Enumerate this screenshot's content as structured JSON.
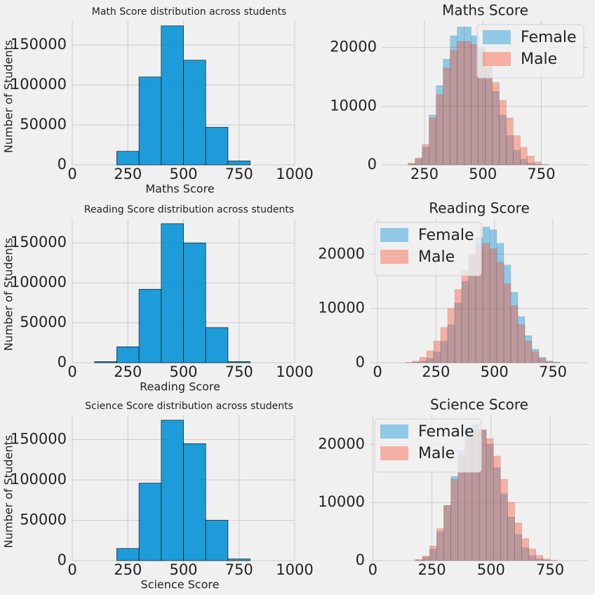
{
  "chart_data": [
    {
      "type": "histogram",
      "title": "Math Score distribution across students",
      "xlabel": "Maths Score",
      "ylabel": "Number of Students",
      "bins": [
        200,
        300,
        400,
        500,
        600,
        700,
        800
      ],
      "values": [
        17000,
        110000,
        174000,
        131000,
        47000,
        5000
      ],
      "color": "#008fd5",
      "xlim": [
        0,
        1000
      ],
      "xticks": [
        0,
        250,
        500,
        750,
        1000
      ],
      "ylim": [
        0,
        180000
      ],
      "yticks": [
        0,
        50000,
        100000,
        150000
      ],
      "grid": true
    },
    {
      "type": "overlaid_histogram",
      "title": "Maths Score",
      "bins": [
        180,
        210,
        240,
        270,
        300,
        330,
        360,
        390,
        420,
        450,
        480,
        510,
        540,
        570,
        600,
        630,
        660,
        690,
        720,
        750,
        780
      ],
      "series": [
        {
          "name": "Female",
          "color": "#008fd5",
          "values": [
            200,
            1000,
            3000,
            8500,
            13500,
            18000,
            22000,
            23500,
            23500,
            22000,
            20000,
            16500,
            12500,
            8500,
            5000,
            2500,
            1000,
            300,
            100,
            0
          ]
        },
        {
          "name": "Male",
          "color": "#fc4f30",
          "values": [
            300,
            1200,
            3500,
            8000,
            12000,
            16500,
            19500,
            21000,
            21000,
            20500,
            19000,
            17000,
            14000,
            11000,
            8000,
            5000,
            3000,
            1500,
            500,
            100
          ]
        }
      ],
      "xlim": [
        70,
        950
      ],
      "xticks": [
        250,
        500,
        750
      ],
      "ylim": [
        0,
        24500
      ],
      "yticks": [
        0,
        10000,
        20000
      ],
      "grid": true,
      "legend": "upper right"
    },
    {
      "type": "histogram",
      "title": "Reading Score distribution across students",
      "xlabel": "Reading Score",
      "ylabel": "Number of Students",
      "bins": [
        100,
        200,
        300,
        400,
        500,
        600,
        700,
        800
      ],
      "values": [
        1500,
        20000,
        92000,
        174000,
        150000,
        44000,
        1500
      ],
      "color": "#008fd5",
      "xlim": [
        0,
        1000
      ],
      "xticks": [
        0,
        250,
        500,
        750,
        1000
      ],
      "ylim": [
        0,
        180000
      ],
      "yticks": [
        0,
        50000,
        100000,
        150000
      ],
      "grid": true
    },
    {
      "type": "overlaid_histogram",
      "title": "Reading Score",
      "bins": [
        120,
        150,
        180,
        210,
        240,
        270,
        300,
        330,
        360,
        390,
        420,
        450,
        480,
        510,
        540,
        570,
        600,
        630,
        660,
        690,
        720,
        750,
        780
      ],
      "series": [
        {
          "name": "Female",
          "color": "#008fd5",
          "values": [
            0,
            100,
            300,
            800,
            2000,
            4000,
            7000,
            11000,
            15000,
            19500,
            23000,
            25000,
            24500,
            22000,
            18000,
            13000,
            8500,
            5000,
            2500,
            1000,
            300,
            100
          ]
        },
        {
          "name": "Male",
          "color": "#fc4f30",
          "values": [
            100,
            300,
            1000,
            2200,
            4000,
            6500,
            10000,
            13500,
            17000,
            20000,
            21500,
            22000,
            21000,
            18500,
            14500,
            10500,
            7000,
            4000,
            2000,
            800,
            200,
            50
          ]
        }
      ],
      "xlim": [
        -30,
        900
      ],
      "xticks": [
        0,
        250,
        500,
        750
      ],
      "ylim": [
        0,
        26500
      ],
      "yticks": [
        0,
        10000,
        20000
      ],
      "grid": true,
      "legend": "upper left"
    },
    {
      "type": "histogram",
      "title": "Science Score distribution across students",
      "xlabel": "Science Score",
      "ylabel": "Number of Students",
      "bins": [
        200,
        300,
        400,
        500,
        600,
        700,
        800
      ],
      "values": [
        15000,
        96000,
        174000,
        145000,
        50000,
        2000
      ],
      "color": "#008fd5",
      "xlim": [
        0,
        1000
      ],
      "xticks": [
        0,
        250,
        500,
        750,
        1000
      ],
      "ylim": [
        0,
        180000
      ],
      "yticks": [
        0,
        50000,
        100000,
        150000
      ],
      "grid": true
    },
    {
      "type": "overlaid_histogram",
      "title": "Science Score",
      "bins": [
        180,
        210,
        240,
        270,
        300,
        330,
        360,
        390,
        420,
        450,
        480,
        510,
        540,
        570,
        600,
        630,
        660,
        690,
        720,
        750,
        780
      ],
      "series": [
        {
          "name": "Female",
          "color": "#008fd5",
          "values": [
            100,
            600,
            2000,
            5000,
            9500,
            14500,
            19000,
            22500,
            23500,
            22500,
            20000,
            16000,
            11500,
            7500,
            4500,
            2200,
            900,
            300,
            100,
            0
          ]
        },
        {
          "name": "Male",
          "color": "#fc4f30",
          "values": [
            200,
            800,
            2500,
            5500,
            9500,
            14000,
            18000,
            21000,
            22500,
            22500,
            21000,
            18000,
            14000,
            10000,
            6500,
            3800,
            2000,
            900,
            300,
            100
          ]
        }
      ],
      "xlim": [
        -10,
        910
      ],
      "xticks": [
        0,
        250,
        500,
        750
      ],
      "ylim": [
        0,
        25000
      ],
      "yticks": [
        0,
        10000,
        20000
      ],
      "grid": true,
      "legend": "upper left"
    }
  ]
}
